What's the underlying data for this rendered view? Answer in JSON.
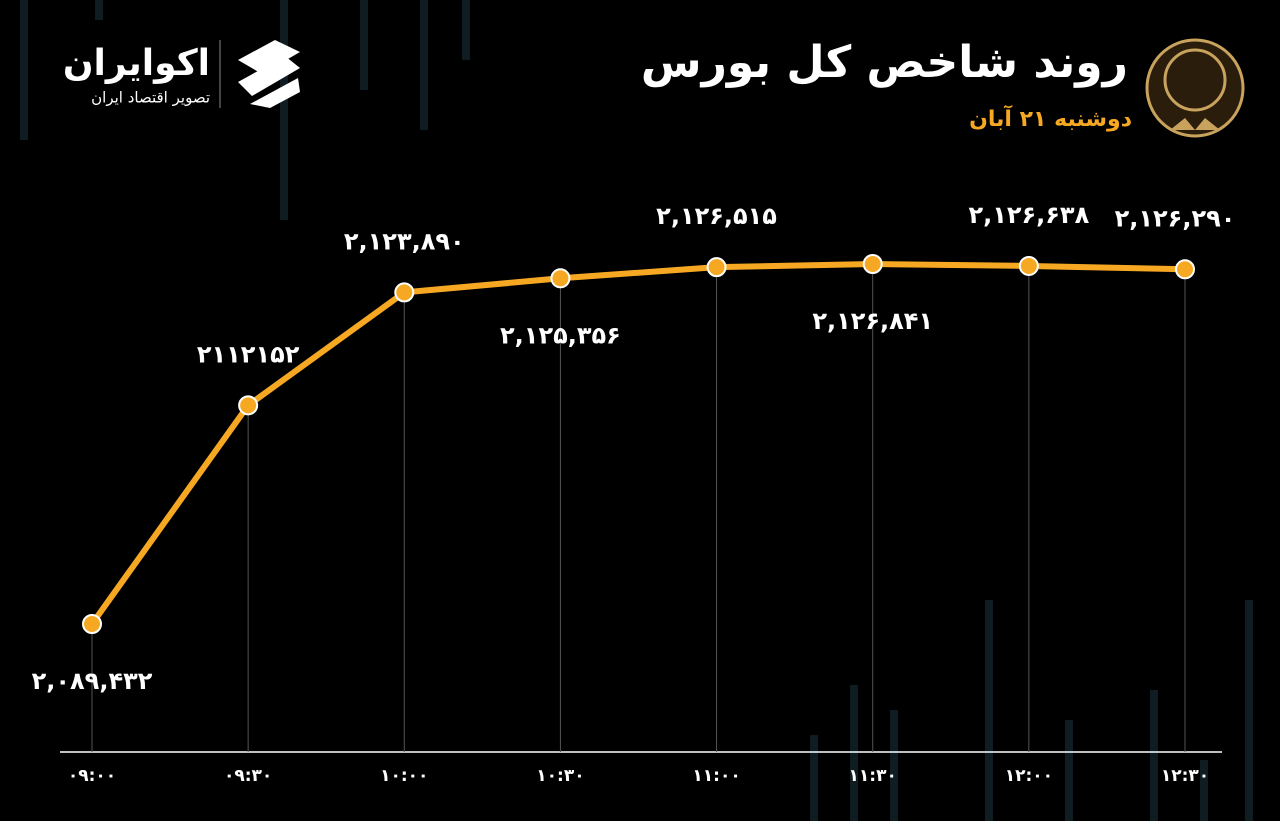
{
  "chart_data": {
    "type": "line",
    "title": "روند شاخص کل بورس",
    "subtitle": "دوشنبه ۲۱ آبان",
    "brand": "اکوایران",
    "brand_tagline": "تصویر اقتصاد ایران",
    "categories": [
      "۰۹:۰۰",
      "۰۹:۳۰",
      "۱۰:۰۰",
      "۱۰:۳۰",
      "۱۱:۰۰",
      "۱۱:۳۰",
      "۱۲:۰۰",
      "۱۲:۳۰"
    ],
    "values": [
      2089432,
      2112152,
      2123890,
      2125356,
      2126515,
      2126841,
      2126638,
      2126290
    ],
    "value_labels": [
      "۲,۰۸۹,۴۳۲",
      "۲۱۱۲۱۵۲",
      "۲,۱۲۳,۸۹۰",
      "۲,۱۲۵,۳۵۶",
      "۲,۱۲۶,۵۱۵",
      "۲,۱۲۶,۸۴۱",
      "۲,۱۲۶,۶۳۸",
      "۲,۱۲۶,۲۹۰"
    ],
    "color": "#f7a823"
  }
}
